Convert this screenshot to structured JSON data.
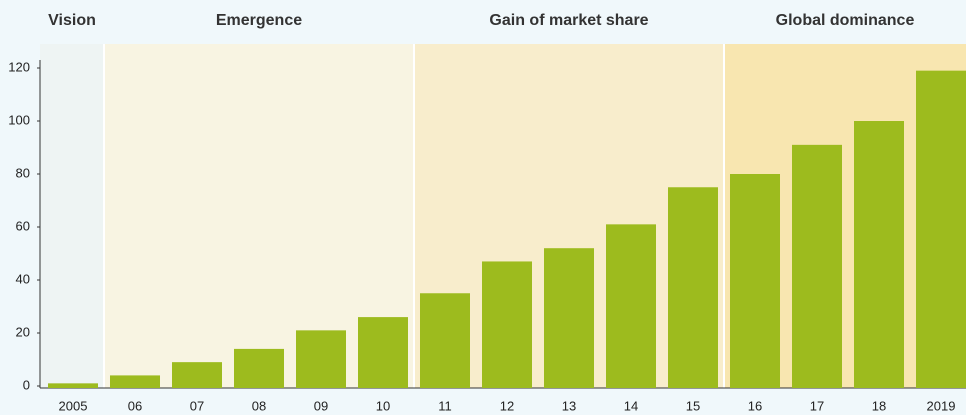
{
  "chart_data": {
    "type": "bar",
    "categories": [
      "2005",
      "06",
      "07",
      "08",
      "09",
      "10",
      "11",
      "12",
      "13",
      "14",
      "15",
      "16",
      "17",
      "18",
      "2019"
    ],
    "values": [
      1,
      4,
      9,
      14,
      21,
      26,
      35,
      47,
      52,
      61,
      75,
      80,
      91,
      100,
      119
    ],
    "color": "#9dbb1e",
    "ylim": [
      0,
      120
    ],
    "yticks": [
      0,
      20,
      40,
      60,
      80,
      100,
      120
    ],
    "annotations": [
      {
        "label": "Vision",
        "from": "2005",
        "to": "2005",
        "color": "#eef4f3"
      },
      {
        "label": "Emergence",
        "from": "06",
        "to": "10",
        "color": "#f8f4e2"
      },
      {
        "label": "Gain of market share",
        "from": "11",
        "to": "15",
        "color": "#f8edcc"
      },
      {
        "label": "Global dominance",
        "from": "16",
        "to": "2019",
        "color": "#f8e6b0"
      }
    ]
  }
}
